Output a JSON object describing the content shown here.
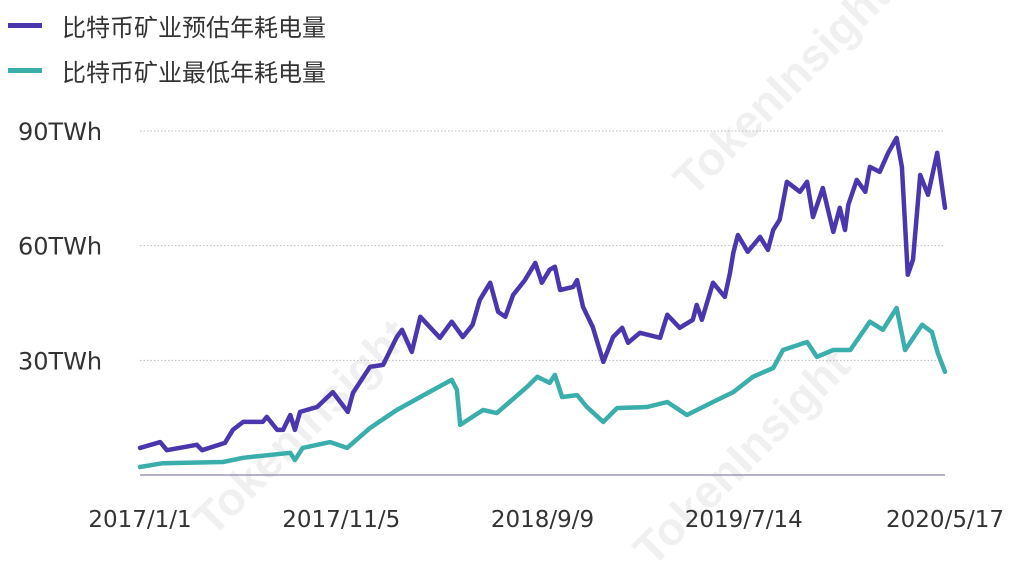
{
  "watermark": "TokenInsight",
  "chart_data": {
    "type": "line",
    "title": "",
    "xlabel": "",
    "ylabel": "",
    "x_tick_labels": [
      "2017/1/1",
      "2017/11/5",
      "2018/9/9",
      "2019/7/14",
      "2020/5/17"
    ],
    "x_ticks": [
      "2017-01-01",
      "2017-11-05",
      "2018-09-09",
      "2019-07-14",
      "2020-05-17"
    ],
    "xlim": [
      "2017-01-01",
      "2020-05-17"
    ],
    "y_tick_labels": [
      "30TWh",
      "60TWh",
      "90TWh"
    ],
    "y_ticks": [
      30,
      60,
      90
    ],
    "ylim": [
      0,
      90
    ],
    "grid": "horizontal dotted",
    "legend_position": "top-left",
    "series": [
      {
        "name": "比特币矿业预估年耗电量",
        "color": "#4b36ad",
        "points": [
          [
            "2017-01-01",
            7.1
          ],
          [
            "2017-02-01",
            8.6
          ],
          [
            "2017-02-11",
            6.5
          ],
          [
            "2017-03-29",
            7.9
          ],
          [
            "2017-04-06",
            6.5
          ],
          [
            "2017-05-11",
            8.4
          ],
          [
            "2017-05-23",
            11.8
          ],
          [
            "2017-06-08",
            13.9
          ],
          [
            "2017-07-08",
            13.9
          ],
          [
            "2017-07-14",
            15.2
          ],
          [
            "2017-07-30",
            11.8
          ],
          [
            "2017-08-08",
            11.8
          ],
          [
            "2017-08-19",
            15.7
          ],
          [
            "2017-08-26",
            11.8
          ],
          [
            "2017-09-03",
            16.5
          ],
          [
            "2017-09-29",
            17.8
          ],
          [
            "2017-10-23",
            21.7
          ],
          [
            "2017-11-15",
            16.5
          ],
          [
            "2017-11-23",
            21.5
          ],
          [
            "2017-12-19",
            28.3
          ],
          [
            "2018-01-08",
            28.8
          ],
          [
            "2018-01-29",
            36.1
          ],
          [
            "2018-02-06",
            38.0
          ],
          [
            "2018-02-21",
            32.2
          ],
          [
            "2018-03-06",
            41.4
          ],
          [
            "2018-04-05",
            35.9
          ],
          [
            "2018-04-23",
            40.1
          ],
          [
            "2018-05-10",
            36.1
          ],
          [
            "2018-05-25",
            39.3
          ],
          [
            "2018-06-05",
            45.8
          ],
          [
            "2018-06-21",
            50.3
          ],
          [
            "2018-07-03",
            42.7
          ],
          [
            "2018-07-14",
            41.4
          ],
          [
            "2018-07-26",
            47.1
          ],
          [
            "2018-08-13",
            51.0
          ],
          [
            "2018-08-29",
            55.5
          ],
          [
            "2018-09-08",
            50.3
          ],
          [
            "2018-09-20",
            53.7
          ],
          [
            "2018-09-28",
            54.5
          ],
          [
            "2018-10-06",
            48.4
          ],
          [
            "2018-10-26",
            49.2
          ],
          [
            "2018-11-01",
            51.0
          ],
          [
            "2018-11-10",
            44.0
          ],
          [
            "2018-11-25",
            38.7
          ],
          [
            "2018-12-11",
            29.6
          ],
          [
            "2018-12-26",
            36.1
          ],
          [
            "2019-01-09",
            38.5
          ],
          [
            "2019-01-18",
            34.6
          ],
          [
            "2019-02-05",
            37.2
          ],
          [
            "2019-03-08",
            35.9
          ],
          [
            "2019-03-19",
            41.9
          ],
          [
            "2019-04-07",
            38.5
          ],
          [
            "2019-04-27",
            40.6
          ],
          [
            "2019-05-03",
            44.5
          ],
          [
            "2019-05-11",
            40.6
          ],
          [
            "2019-05-28",
            50.3
          ],
          [
            "2019-06-15",
            46.6
          ],
          [
            "2019-06-23",
            52.9
          ],
          [
            "2019-06-28",
            58.1
          ],
          [
            "2019-07-05",
            62.8
          ],
          [
            "2019-07-20",
            58.4
          ],
          [
            "2019-08-08",
            62.3
          ],
          [
            "2019-08-20",
            58.9
          ],
          [
            "2019-08-28",
            64.1
          ],
          [
            "2019-09-07",
            66.8
          ],
          [
            "2019-09-18",
            76.7
          ],
          [
            "2019-10-08",
            74.1
          ],
          [
            "2019-10-19",
            76.7
          ],
          [
            "2019-10-28",
            67.5
          ],
          [
            "2019-11-12",
            75.1
          ],
          [
            "2019-11-28",
            63.6
          ],
          [
            "2019-12-08",
            69.9
          ],
          [
            "2019-12-16",
            64.1
          ],
          [
            "2019-12-21",
            70.7
          ],
          [
            "2020-01-03",
            77.2
          ],
          [
            "2020-01-16",
            74.1
          ],
          [
            "2020-01-23",
            80.6
          ],
          [
            "2020-02-07",
            79.3
          ],
          [
            "2020-02-20",
            84.3
          ],
          [
            "2020-03-04",
            88.2
          ],
          [
            "2020-03-12",
            80.6
          ],
          [
            "2020-03-21",
            52.4
          ],
          [
            "2020-03-29",
            56.3
          ],
          [
            "2020-04-09",
            78.5
          ],
          [
            "2020-04-21",
            73.3
          ],
          [
            "2020-05-05",
            84.3
          ],
          [
            "2020-05-17",
            69.9
          ]
        ]
      },
      {
        "name": "比特币矿业最低年耗电量",
        "color": "#3aaeaa",
        "points": [
          [
            "2017-01-01",
            2.1
          ],
          [
            "2017-02-05",
            3.1
          ],
          [
            "2017-05-08",
            3.4
          ],
          [
            "2017-06-08",
            4.5
          ],
          [
            "2017-08-19",
            5.8
          ],
          [
            "2017-08-26",
            3.9
          ],
          [
            "2017-09-07",
            7.1
          ],
          [
            "2017-10-19",
            8.6
          ],
          [
            "2017-11-14",
            7.1
          ],
          [
            "2017-12-19",
            12.3
          ],
          [
            "2018-01-29",
            17.0
          ],
          [
            "2018-03-06",
            20.4
          ],
          [
            "2018-04-23",
            24.9
          ],
          [
            "2018-05-01",
            22.3
          ],
          [
            "2018-05-06",
            13.1
          ],
          [
            "2018-06-10",
            17.0
          ],
          [
            "2018-07-01",
            16.2
          ],
          [
            "2018-08-16",
            23.0
          ],
          [
            "2018-09-01",
            25.7
          ],
          [
            "2018-09-20",
            24.1
          ],
          [
            "2018-09-28",
            26.2
          ],
          [
            "2018-10-09",
            20.4
          ],
          [
            "2018-11-01",
            20.9
          ],
          [
            "2018-11-16",
            17.8
          ],
          [
            "2018-12-11",
            13.9
          ],
          [
            "2019-01-01",
            17.5
          ],
          [
            "2019-02-16",
            17.8
          ],
          [
            "2019-03-19",
            19.1
          ],
          [
            "2019-04-18",
            15.7
          ],
          [
            "2019-05-28",
            19.1
          ],
          [
            "2019-06-28",
            21.7
          ],
          [
            "2019-07-28",
            25.7
          ],
          [
            "2019-08-28",
            28.0
          ],
          [
            "2019-09-12",
            32.7
          ],
          [
            "2019-10-19",
            34.8
          ],
          [
            "2019-11-03",
            30.9
          ],
          [
            "2019-11-28",
            32.7
          ],
          [
            "2019-12-24",
            32.7
          ],
          [
            "2020-01-23",
            40.1
          ],
          [
            "2020-02-12",
            38.0
          ],
          [
            "2020-03-04",
            43.7
          ],
          [
            "2020-03-17",
            32.7
          ],
          [
            "2020-04-12",
            39.3
          ],
          [
            "2020-04-27",
            37.4
          ],
          [
            "2020-05-06",
            31.9
          ],
          [
            "2020-05-17",
            27.0
          ]
        ]
      }
    ]
  }
}
